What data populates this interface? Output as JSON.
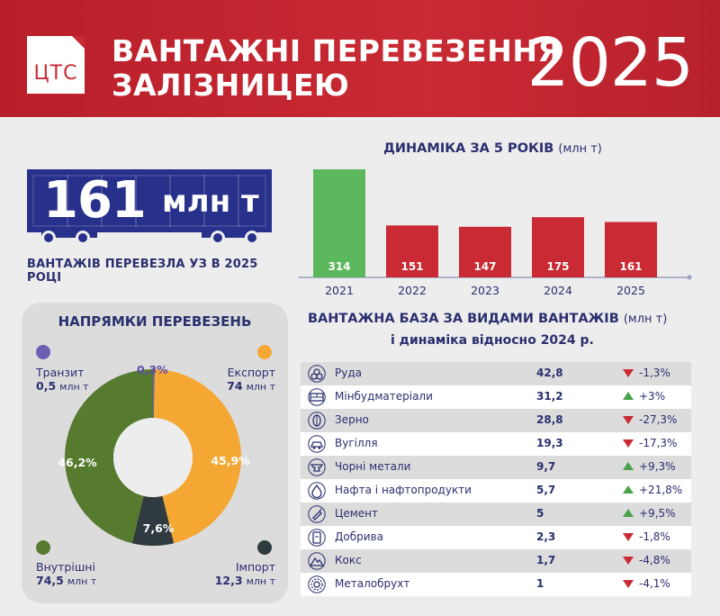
{
  "header": {
    "logo_text": "ЦТС",
    "title_line1": "ВАНТАЖНІ ПЕРЕВЕЗЕННЯ",
    "title_line2": "ЗАЛІЗНИЦЕЮ",
    "year": "2025"
  },
  "total": {
    "value": "161",
    "unit": "млн т",
    "caption": "ВАНТАЖІВ ПЕРЕВЕЗЛА УЗ В 2025 РОЦІ"
  },
  "colors": {
    "red": "#c92a33",
    "green": "#5cb85c",
    "navy": "#27308a",
    "orange": "#f5a733",
    "olive": "#567a2e",
    "dark_slate": "#2f3b3f",
    "purple": "#6a5fb3"
  },
  "chart_data": [
    {
      "type": "bar",
      "title": "ДИНАМІКА ЗА 5 РОКІВ",
      "title_unit": "(млн т)",
      "categories": [
        "2021",
        "2022",
        "2023",
        "2024",
        "2025"
      ],
      "values": [
        314,
        151,
        147,
        175,
        161
      ],
      "value_labels": [
        "314",
        "151",
        "147",
        "175",
        "161"
      ],
      "highlight_color": "#5cb85c",
      "bar_color": "#c92a33",
      "ylim": [
        0,
        314
      ]
    },
    {
      "type": "pie",
      "title": "НАПРЯМКИ ПЕРЕВЕЗЕНЬ",
      "slices": [
        {
          "name": "Транзит",
          "value": 0.3,
          "pct_label": "0,3%",
          "amount": "0,5",
          "color": "#6a5fb3"
        },
        {
          "name": "Експорт",
          "value": 45.9,
          "pct_label": "45,9%",
          "amount": "74",
          "color": "#f5a733"
        },
        {
          "name": "Імпорт",
          "value": 7.6,
          "pct_label": "7,6%",
          "amount": "12,3",
          "color": "#2f3b3f"
        },
        {
          "name": "Внутрішні",
          "value": 46.2,
          "pct_label": "46,2%",
          "amount": "74,5",
          "color": "#567a2e"
        }
      ],
      "unit": "млн т"
    },
    {
      "type": "table",
      "title": "ВАНТАЖНА БАЗА ЗА ВИДАМИ ВАНТАЖІВ",
      "title_unit": "(млн т)",
      "subtitle": "і динаміка відносно 2024 р.",
      "rows": [
        {
          "name": "Руда",
          "value": "42,8",
          "change": "-1,3%",
          "dir": "down",
          "icon": "ore-icon"
        },
        {
          "name": "Мінбудматеріали",
          "value": "31,2",
          "change": "+3%",
          "dir": "up",
          "icon": "bricks-icon"
        },
        {
          "name": "Зерно",
          "value": "28,8",
          "change": "-27,3%",
          "dir": "down",
          "icon": "grain-icon"
        },
        {
          "name": "Вугілля",
          "value": "19,3",
          "change": "-17,3%",
          "dir": "down",
          "icon": "coal-icon"
        },
        {
          "name": "Чорні метали",
          "value": "9,7",
          "change": "+9,3%",
          "dir": "up",
          "icon": "anvil-icon"
        },
        {
          "name": "Нафта і нафтопродукти",
          "value": "5,7",
          "change": "+21,8%",
          "dir": "up",
          "icon": "oil-drop-icon"
        },
        {
          "name": "Цемент",
          "value": "5",
          "change": "+9,5%",
          "dir": "up",
          "icon": "trowel-icon"
        },
        {
          "name": "Добрива",
          "value": "2,3",
          "change": "-1,8%",
          "dir": "down",
          "icon": "fertilizer-bag-icon"
        },
        {
          "name": "Кокс",
          "value": "1,7",
          "change": "-4,8%",
          "dir": "down",
          "icon": "mountain-icon"
        },
        {
          "name": "Металобрухт",
          "value": "1",
          "change": "-4,1%",
          "dir": "down",
          "icon": "gear-icon"
        }
      ]
    }
  ]
}
